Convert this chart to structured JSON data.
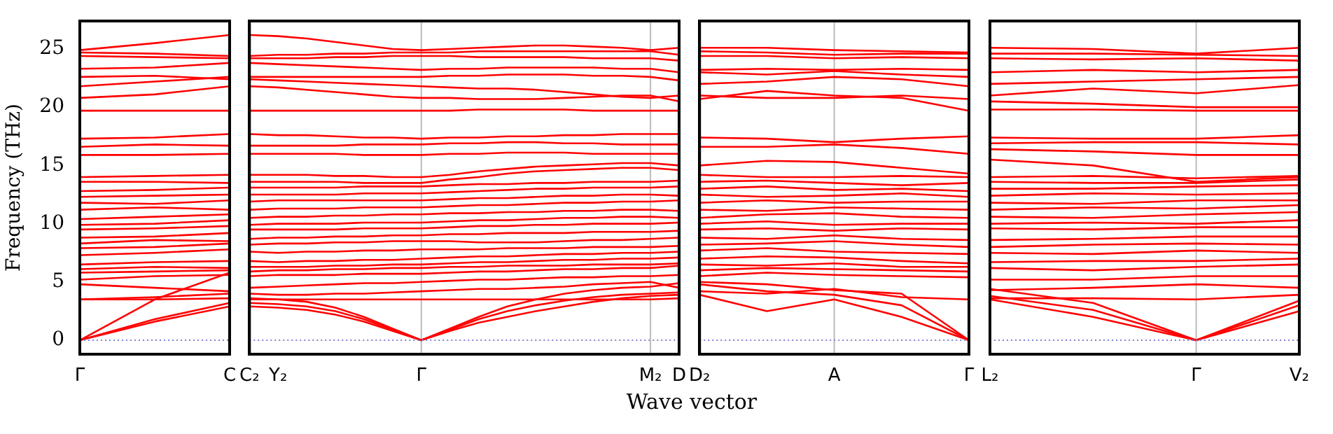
{
  "chart_data": [
    {
      "type": "line",
      "ylabel": "Frequency (THz)",
      "categories": [
        "Γ",
        null,
        "C"
      ],
      "ylim": [
        -1.2,
        27.4
      ],
      "yticks": [
        0,
        5,
        10,
        15,
        20,
        25
      ],
      "marker": "none",
      "ref_lines": [
        {
          "axis": "y",
          "value": 0,
          "color": "#8080d0",
          "line_style": "dotted"
        }
      ],
      "series": [
        {
          "color": "#ff0000",
          "values": [
            0,
            1.6,
            2.9
          ]
        },
        {
          "color": "#ff0000",
          "values": [
            0,
            1.8,
            3.2
          ]
        },
        {
          "color": "#ff0000",
          "values": [
            0,
            3.5,
            5.8
          ]
        },
        {
          "color": "#ff0000",
          "values": [
            3.5,
            3.5,
            3.6
          ]
        },
        {
          "color": "#ff0000",
          "values": [
            3.5,
            3.7,
            4.0
          ]
        },
        {
          "color": "#ff0000",
          "values": [
            4.8,
            4.5,
            4.2
          ]
        },
        {
          "color": "#ff0000",
          "values": [
            5.2,
            5.5,
            5.6
          ]
        },
        {
          "color": "#ff0000",
          "values": [
            5.8,
            5.9,
            6.0
          ]
        },
        {
          "color": "#ff0000",
          "values": [
            6.1,
            6.3,
            6.2
          ]
        },
        {
          "color": "#ff0000",
          "values": [
            6.5,
            6.7,
            6.8
          ]
        },
        {
          "color": "#ff0000",
          "values": [
            7.3,
            7.5,
            7.8
          ]
        },
        {
          "color": "#ff0000",
          "values": [
            7.9,
            8.0,
            8.3
          ]
        },
        {
          "color": "#ff0000",
          "values": [
            8.3,
            8.6,
            8.5
          ]
        },
        {
          "color": "#ff0000",
          "values": [
            8.8,
            8.9,
            9.2
          ]
        },
        {
          "color": "#ff0000",
          "values": [
            9.5,
            9.6,
            9.8
          ]
        },
        {
          "color": "#ff0000",
          "values": [
            9.9,
            10.0,
            10.3
          ]
        },
        {
          "color": "#ff0000",
          "values": [
            10.4,
            10.6,
            10.8
          ]
        },
        {
          "color": "#ff0000",
          "values": [
            11.2,
            11.4,
            11.2
          ]
        },
        {
          "color": "#ff0000",
          "values": [
            11.8,
            11.7,
            12.0
          ]
        },
        {
          "color": "#ff0000",
          "values": [
            12.3,
            12.4,
            12.5
          ]
        },
        {
          "color": "#ff0000",
          "values": [
            12.8,
            12.9,
            13.1
          ]
        },
        {
          "color": "#ff0000",
          "values": [
            13.6,
            13.6,
            13.5
          ]
        },
        {
          "color": "#ff0000",
          "values": [
            14.0,
            14.1,
            14.2
          ]
        },
        {
          "color": "#ff0000",
          "values": [
            15.9,
            15.9,
            16.0
          ]
        },
        {
          "color": "#ff0000",
          "values": [
            16.6,
            16.8,
            16.7
          ]
        },
        {
          "color": "#ff0000",
          "values": [
            17.3,
            17.4,
            17.7
          ]
        },
        {
          "color": "#ff0000",
          "values": [
            19.7,
            19.7,
            19.7
          ]
        },
        {
          "color": "#ff0000",
          "values": [
            20.8,
            21.1,
            21.8
          ]
        },
        {
          "color": "#ff0000",
          "values": [
            21.8,
            22.2,
            22.6
          ]
        },
        {
          "color": "#ff0000",
          "values": [
            22.6,
            22.7,
            22.4
          ]
        },
        {
          "color": "#ff0000",
          "values": [
            23.3,
            23.4,
            23.8
          ]
        },
        {
          "color": "#ff0000",
          "values": [
            24.4,
            24.3,
            24.2
          ]
        },
        {
          "color": "#ff0000",
          "values": [
            24.7,
            24.6,
            24.4
          ]
        },
        {
          "color": "#ff0000",
          "values": [
            24.9,
            25.5,
            26.2
          ]
        }
      ]
    },
    {
      "type": "line",
      "xlabel": "Wave vector",
      "categories": [
        "C₂",
        "Y₂",
        null,
        null,
        null,
        null,
        "Γ",
        null,
        null,
        null,
        null,
        null,
        null,
        null,
        "M₂",
        "D"
      ],
      "ylim": [
        -1.2,
        27.4
      ],
      "yticks": [
        0,
        5,
        10,
        15,
        20,
        25
      ],
      "tick_labels": "x",
      "marker": "none",
      "ref_lines": [
        {
          "axis": "y",
          "value": 0,
          "color": "#8080d0",
          "line_style": "dotted"
        },
        {
          "axis": "x",
          "value": "Γ",
          "color": "#bbbbbb",
          "line_style": "solid"
        },
        {
          "axis": "x",
          "value": "M₂",
          "color": "#bbbbbb",
          "line_style": "solid"
        }
      ],
      "series": [
        {
          "color": "#ff0000",
          "values": [
            2.9,
            2.8,
            2.6,
            2.2,
            1.6,
            0.8,
            0,
            0.8,
            1.5,
            2.0,
            2.5,
            2.9,
            3.3,
            3.6,
            3.8,
            3.9
          ]
        },
        {
          "color": "#ff0000",
          "values": [
            3.2,
            3.1,
            2.9,
            2.5,
            1.8,
            0.9,
            0,
            0.9,
            1.8,
            2.5,
            3.0,
            3.4,
            3.7,
            3.9,
            4.0,
            4.1
          ]
        },
        {
          "color": "#ff0000",
          "values": [
            3.6,
            3.5,
            3.3,
            2.8,
            2.0,
            1.0,
            0,
            1.0,
            2.0,
            2.9,
            3.5,
            4.0,
            4.3,
            4.5,
            4.6,
            4.9
          ]
        },
        {
          "color": "#ff0000",
          "values": [
            3.5,
            3.5,
            3.5,
            3.5,
            3.5,
            3.5,
            3.5,
            3.5,
            3.5,
            3.5,
            3.5,
            3.5,
            3.5,
            3.5,
            3.5,
            3.6
          ]
        },
        {
          "color": "#ff0000",
          "values": [
            4.0,
            3.9,
            3.9,
            4.0,
            4.0,
            4.1,
            4.2,
            4.3,
            4.4,
            4.4,
            4.5,
            4.6,
            4.8,
            4.9,
            5.0,
            4.5
          ]
        },
        {
          "color": "#ff0000",
          "values": [
            4.5,
            4.6,
            4.7,
            4.8,
            4.9,
            4.9,
            5.0,
            5.1,
            5.2,
            5.2,
            5.3,
            5.4,
            5.4,
            5.5,
            5.5,
            5.6
          ]
        },
        {
          "color": "#ff0000",
          "values": [
            5.5,
            5.6,
            5.6,
            5.6,
            5.7,
            5.7,
            5.7,
            5.8,
            5.9,
            5.9,
            6.0,
            6.1,
            6.1,
            6.2,
            6.2,
            6.4
          ]
        },
        {
          "color": "#ff0000",
          "values": [
            5.9,
            6.0,
            6.0,
            6.1,
            6.1,
            6.2,
            6.2,
            6.3,
            6.3,
            6.4,
            6.4,
            6.4,
            6.5,
            6.5,
            6.5,
            6.6
          ]
        },
        {
          "color": "#ff0000",
          "values": [
            6.3,
            6.3,
            6.3,
            6.4,
            6.4,
            6.5,
            6.5,
            6.6,
            6.7,
            6.7,
            6.8,
            6.9,
            6.9,
            7.0,
            7.0,
            7.1
          ]
        },
        {
          "color": "#ff0000",
          "values": [
            6.8,
            6.7,
            6.8,
            6.8,
            6.9,
            6.9,
            7.0,
            7.1,
            7.2,
            7.2,
            7.3,
            7.4,
            7.4,
            7.5,
            7.5,
            7.6
          ]
        },
        {
          "color": "#ff0000",
          "values": [
            7.6,
            7.5,
            7.6,
            7.6,
            7.7,
            7.7,
            7.8,
            7.8,
            7.8,
            7.9,
            7.9,
            7.9,
            8.0,
            8.0,
            8.0,
            8.1
          ]
        },
        {
          "color": "#ff0000",
          "values": [
            8.2,
            8.3,
            8.3,
            8.4,
            8.4,
            8.5,
            8.5,
            8.5,
            8.4,
            8.4,
            8.4,
            8.5,
            8.6,
            8.6,
            8.7,
            8.8
          ]
        },
        {
          "color": "#ff0000",
          "values": [
            8.7,
            8.8,
            8.8,
            8.9,
            8.9,
            9.0,
            9.0,
            9.1,
            9.1,
            9.2,
            9.2,
            9.2,
            9.3,
            9.3,
            9.3,
            9.4
          ]
        },
        {
          "color": "#ff0000",
          "values": [
            9.5,
            9.5,
            9.5,
            9.5,
            9.6,
            9.6,
            9.6,
            9.7,
            9.8,
            9.8,
            9.9,
            9.9,
            10.0,
            10.0,
            10.0,
            10.1
          ]
        },
        {
          "color": "#ff0000",
          "values": [
            9.9,
            10.0,
            10.0,
            10.0,
            10.1,
            10.1,
            10.1,
            10.2,
            10.3,
            10.3,
            10.4,
            10.5,
            10.5,
            10.6,
            10.6,
            10.5
          ]
        },
        {
          "color": "#ff0000",
          "values": [
            10.5,
            10.6,
            10.6,
            10.7,
            10.7,
            10.8,
            10.8,
            10.9,
            10.9,
            11.0,
            11.0,
            11.1,
            11.1,
            11.2,
            11.2,
            11.1
          ]
        },
        {
          "color": "#ff0000",
          "values": [
            11.2,
            11.3,
            11.3,
            11.3,
            11.4,
            11.4,
            11.4,
            11.5,
            11.6,
            11.6,
            11.7,
            11.8,
            11.8,
            11.9,
            11.9,
            12.0
          ]
        },
        {
          "color": "#ff0000",
          "values": [
            11.9,
            12.0,
            12.0,
            12.0,
            12.0,
            12.0,
            12.0,
            12.1,
            12.2,
            12.2,
            12.3,
            12.4,
            12.4,
            12.5,
            12.5,
            12.4
          ]
        },
        {
          "color": "#ff0000",
          "values": [
            12.5,
            12.5,
            12.5,
            12.5,
            12.6,
            12.6,
            12.6,
            12.7,
            12.8,
            12.9,
            13.0,
            13.0,
            13.1,
            13.1,
            13.1,
            13.2
          ]
        },
        {
          "color": "#ff0000",
          "values": [
            13.1,
            13.1,
            13.1,
            13.1,
            13.2,
            13.2,
            13.2,
            13.3,
            13.4,
            13.4,
            13.5,
            13.5,
            13.6,
            13.6,
            13.6,
            13.7
          ]
        },
        {
          "color": "#ff0000",
          "values": [
            13.6,
            13.6,
            13.6,
            13.6,
            13.5,
            13.5,
            13.5,
            13.8,
            14.0,
            14.3,
            14.5,
            14.6,
            14.7,
            14.8,
            14.8,
            14.6
          ]
        },
        {
          "color": "#ff0000",
          "values": [
            14.2,
            14.2,
            14.2,
            14.1,
            14.1,
            14.0,
            14.0,
            14.2,
            14.5,
            14.7,
            14.9,
            15.0,
            15.1,
            15.2,
            15.2,
            15.0
          ]
        },
        {
          "color": "#ff0000",
          "values": [
            16.0,
            16.0,
            16.0,
            16.0,
            15.9,
            15.9,
            15.9,
            16.0,
            16.0,
            16.1,
            16.1,
            16.1,
            16.0,
            16.0,
            16.0,
            16.0
          ]
        },
        {
          "color": "#ff0000",
          "values": [
            16.7,
            16.7,
            16.7,
            16.7,
            16.8,
            16.8,
            16.8,
            16.9,
            16.9,
            17.0,
            17.0,
            16.9,
            16.9,
            16.8,
            16.8,
            16.8
          ]
        },
        {
          "color": "#ff0000",
          "values": [
            17.7,
            17.6,
            17.6,
            17.5,
            17.4,
            17.4,
            17.3,
            17.4,
            17.4,
            17.5,
            17.5,
            17.6,
            17.6,
            17.7,
            17.7,
            17.7
          ]
        },
        {
          "color": "#ff0000",
          "values": [
            19.7,
            19.7,
            19.7,
            19.7,
            19.7,
            19.7,
            19.7,
            19.7,
            19.8,
            19.8,
            19.8,
            19.8,
            19.7,
            19.7,
            19.7,
            19.7
          ]
        },
        {
          "color": "#ff0000",
          "values": [
            21.8,
            21.7,
            21.5,
            21.3,
            21.1,
            20.9,
            20.8,
            20.8,
            20.7,
            20.7,
            20.7,
            20.8,
            20.9,
            21.0,
            21.0,
            20.5
          ]
        },
        {
          "color": "#ff0000",
          "values": [
            22.4,
            22.3,
            22.2,
            22.1,
            22.0,
            21.9,
            21.8,
            21.7,
            21.6,
            21.6,
            21.5,
            21.3,
            21.1,
            20.9,
            20.8,
            21.0
          ]
        },
        {
          "color": "#ff0000",
          "values": [
            22.6,
            22.6,
            22.6,
            22.6,
            22.6,
            22.6,
            22.6,
            22.7,
            22.7,
            22.8,
            22.8,
            22.8,
            22.7,
            22.7,
            22.6,
            22.3
          ]
        },
        {
          "color": "#ff0000",
          "values": [
            23.8,
            23.7,
            23.6,
            23.5,
            23.4,
            23.3,
            23.2,
            23.3,
            23.3,
            23.4,
            23.4,
            23.4,
            23.4,
            23.3,
            23.3,
            23.0
          ]
        },
        {
          "color": "#ff0000",
          "values": [
            24.2,
            24.2,
            24.2,
            24.3,
            24.3,
            24.4,
            24.4,
            24.4,
            24.3,
            24.3,
            24.3,
            24.3,
            24.2,
            24.2,
            24.2,
            24.0
          ]
        },
        {
          "color": "#ff0000",
          "values": [
            24.4,
            24.5,
            24.5,
            24.6,
            24.6,
            24.7,
            24.7,
            24.7,
            24.8,
            24.8,
            24.8,
            24.8,
            24.8,
            24.8,
            24.8,
            24.5
          ]
        },
        {
          "color": "#ff0000",
          "values": [
            26.2,
            26.1,
            25.9,
            25.6,
            25.3,
            25.0,
            24.9,
            25.0,
            25.1,
            25.2,
            25.3,
            25.3,
            25.2,
            25.1,
            24.9,
            25.1
          ]
        }
      ]
    },
    {
      "type": "line",
      "categories": [
        "D₂",
        null,
        "A",
        null,
        "Γ"
      ],
      "ylim": [
        -1.2,
        27.4
      ],
      "yticks": [
        0,
        5,
        10,
        15,
        20,
        25
      ],
      "tick_labels": "x",
      "marker": "none",
      "ref_lines": [
        {
          "axis": "y",
          "value": 0,
          "color": "#8080d0",
          "line_style": "dotted"
        },
        {
          "axis": "x",
          "value": "A",
          "color": "#bbbbbb",
          "line_style": "solid"
        }
      ],
      "series": [
        {
          "color": "#ff0000",
          "values": [
            3.9,
            2.5,
            3.5,
            2.0,
            0
          ]
        },
        {
          "color": "#ff0000",
          "values": [
            4.8,
            4.2,
            3.9,
            3.0,
            0
          ]
        },
        {
          "color": "#ff0000",
          "values": [
            5.0,
            4.8,
            4.3,
            4.0,
            0
          ]
        },
        {
          "color": "#ff0000",
          "values": [
            4.2,
            4.0,
            4.4,
            3.7,
            3.5
          ]
        },
        {
          "color": "#ff0000",
          "values": [
            5.5,
            5.8,
            5.6,
            5.5,
            5.4
          ]
        },
        {
          "color": "#ff0000",
          "values": [
            6.0,
            6.2,
            6.1,
            6.0,
            5.9
          ]
        },
        {
          "color": "#ff0000",
          "values": [
            6.5,
            6.4,
            6.6,
            6.3,
            6.3
          ]
        },
        {
          "color": "#ff0000",
          "values": [
            7.0,
            7.2,
            7.1,
            6.8,
            6.6
          ]
        },
        {
          "color": "#ff0000",
          "values": [
            7.7,
            7.9,
            7.6,
            7.5,
            7.4
          ]
        },
        {
          "color": "#ff0000",
          "values": [
            8.2,
            8.3,
            8.5,
            8.2,
            8.0
          ]
        },
        {
          "color": "#ff0000",
          "values": [
            8.8,
            8.7,
            9.0,
            8.7,
            8.6
          ]
        },
        {
          "color": "#ff0000",
          "values": [
            9.5,
            9.6,
            9.4,
            9.6,
            9.5
          ]
        },
        {
          "color": "#ff0000",
          "values": [
            10.0,
            10.2,
            9.9,
            10.0,
            10.0
          ]
        },
        {
          "color": "#ff0000",
          "values": [
            10.5,
            10.8,
            10.9,
            10.6,
            10.5
          ]
        },
        {
          "color": "#ff0000",
          "values": [
            11.2,
            11.1,
            11.4,
            11.3,
            11.2
          ]
        },
        {
          "color": "#ff0000",
          "values": [
            11.8,
            12.0,
            11.8,
            11.9,
            11.9
          ]
        },
        {
          "color": "#ff0000",
          "values": [
            12.5,
            12.3,
            12.4,
            12.6,
            12.3
          ]
        },
        {
          "color": "#ff0000",
          "values": [
            13.0,
            13.2,
            12.9,
            13.0,
            12.8
          ]
        },
        {
          "color": "#ff0000",
          "values": [
            13.6,
            13.7,
            13.5,
            13.3,
            13.5
          ]
        },
        {
          "color": "#ff0000",
          "values": [
            14.2,
            14.0,
            14.0,
            14.1,
            14.0
          ]
        },
        {
          "color": "#ff0000",
          "values": [
            15.0,
            15.4,
            15.3,
            14.8,
            14.3
          ]
        },
        {
          "color": "#ff0000",
          "values": [
            16.6,
            16.6,
            16.8,
            16.5,
            16.0
          ]
        },
        {
          "color": "#ff0000",
          "values": [
            17.4,
            17.3,
            17.0,
            17.3,
            17.5
          ]
        },
        {
          "color": "#ff0000",
          "values": [
            20.7,
            21.4,
            21.0,
            20.8,
            19.7
          ]
        },
        {
          "color": "#ff0000",
          "values": [
            21.0,
            20.8,
            20.8,
            21.0,
            20.7
          ]
        },
        {
          "color": "#ff0000",
          "values": [
            22.0,
            22.2,
            22.6,
            22.4,
            21.8
          ]
        },
        {
          "color": "#ff0000",
          "values": [
            23.0,
            22.8,
            23.1,
            22.8,
            22.6
          ]
        },
        {
          "color": "#ff0000",
          "values": [
            23.2,
            23.3,
            23.2,
            23.3,
            23.2
          ]
        },
        {
          "color": "#ff0000",
          "values": [
            24.4,
            24.4,
            24.2,
            24.3,
            24.2
          ]
        },
        {
          "color": "#ff0000",
          "values": [
            24.8,
            24.7,
            24.5,
            24.6,
            24.6
          ]
        },
        {
          "color": "#ff0000",
          "values": [
            25.1,
            25.1,
            24.9,
            24.8,
            24.7
          ]
        }
      ]
    },
    {
      "type": "line",
      "categories": [
        "L₂",
        null,
        "Γ",
        "V₂"
      ],
      "ylim": [
        -1.2,
        27.4
      ],
      "yticks": [
        0,
        5,
        10,
        15,
        20,
        25
      ],
      "tick_labels": "x",
      "marker": "none",
      "ref_lines": [
        {
          "axis": "y",
          "value": 0,
          "color": "#8080d0",
          "line_style": "dotted"
        },
        {
          "axis": "x",
          "value": "Γ",
          "color": "#bbbbbb",
          "line_style": "solid"
        }
      ],
      "series": [
        {
          "color": "#ff0000",
          "values": [
            3.5,
            2.0,
            0,
            2.5
          ]
        },
        {
          "color": "#ff0000",
          "values": [
            3.8,
            2.6,
            0,
            3.0
          ]
        },
        {
          "color": "#ff0000",
          "values": [
            4.4,
            3.2,
            0,
            3.4
          ]
        },
        {
          "color": "#ff0000",
          "values": [
            3.6,
            3.6,
            3.5,
            3.9
          ]
        },
        {
          "color": "#ff0000",
          "values": [
            4.3,
            4.5,
            4.8,
            4.5
          ]
        },
        {
          "color": "#ff0000",
          "values": [
            5.2,
            5.2,
            5.5,
            5.5
          ]
        },
        {
          "color": "#ff0000",
          "values": [
            6.2,
            6.0,
            6.3,
            6.5
          ]
        },
        {
          "color": "#ff0000",
          "values": [
            6.7,
            6.8,
            6.8,
            7.0
          ]
        },
        {
          "color": "#ff0000",
          "values": [
            7.5,
            7.4,
            7.7,
            7.5
          ]
        },
        {
          "color": "#ff0000",
          "values": [
            8.0,
            8.2,
            8.3,
            8.2
          ]
        },
        {
          "color": "#ff0000",
          "values": [
            8.6,
            8.7,
            8.9,
            8.9
          ]
        },
        {
          "color": "#ff0000",
          "values": [
            9.6,
            9.5,
            9.7,
            9.7
          ]
        },
        {
          "color": "#ff0000",
          "values": [
            10.0,
            10.1,
            10.0,
            10.3
          ]
        },
        {
          "color": "#ff0000",
          "values": [
            10.6,
            10.5,
            10.8,
            11.0
          ]
        },
        {
          "color": "#ff0000",
          "values": [
            11.2,
            11.4,
            11.3,
            11.6
          ]
        },
        {
          "color": "#ff0000",
          "values": [
            11.8,
            11.7,
            12.0,
            12.0
          ]
        },
        {
          "color": "#ff0000",
          "values": [
            12.4,
            12.6,
            12.5,
            12.6
          ]
        },
        {
          "color": "#ff0000",
          "values": [
            13.0,
            13.0,
            13.2,
            13.3
          ]
        },
        {
          "color": "#ff0000",
          "values": [
            13.6,
            13.5,
            13.5,
            13.8
          ]
        },
        {
          "color": "#ff0000",
          "values": [
            14.0,
            14.1,
            13.9,
            14.1
          ]
        },
        {
          "color": "#ff0000",
          "values": [
            15.5,
            15.0,
            13.6,
            14.0
          ]
        },
        {
          "color": "#ff0000",
          "values": [
            16.4,
            16.2,
            15.9,
            15.9
          ]
        },
        {
          "color": "#ff0000",
          "values": [
            16.9,
            17.0,
            17.0,
            16.8
          ]
        },
        {
          "color": "#ff0000",
          "values": [
            17.4,
            17.3,
            17.3,
            17.6
          ]
        },
        {
          "color": "#ff0000",
          "values": [
            19.8,
            19.8,
            19.7,
            19.7
          ]
        },
        {
          "color": "#ff0000",
          "values": [
            20.5,
            20.3,
            20.0,
            20.0
          ]
        },
        {
          "color": "#ff0000",
          "values": [
            21.0,
            21.6,
            21.2,
            21.9
          ]
        },
        {
          "color": "#ff0000",
          "values": [
            22.0,
            22.2,
            22.4,
            22.6
          ]
        },
        {
          "color": "#ff0000",
          "values": [
            23.0,
            23.2,
            23.0,
            23.2
          ]
        },
        {
          "color": "#ff0000",
          "values": [
            24.2,
            24.1,
            24.2,
            24.0
          ]
        },
        {
          "color": "#ff0000",
          "values": [
            24.6,
            24.6,
            24.5,
            24.4
          ]
        },
        {
          "color": "#ff0000",
          "values": [
            25.1,
            25.0,
            24.6,
            25.1
          ]
        }
      ]
    }
  ]
}
